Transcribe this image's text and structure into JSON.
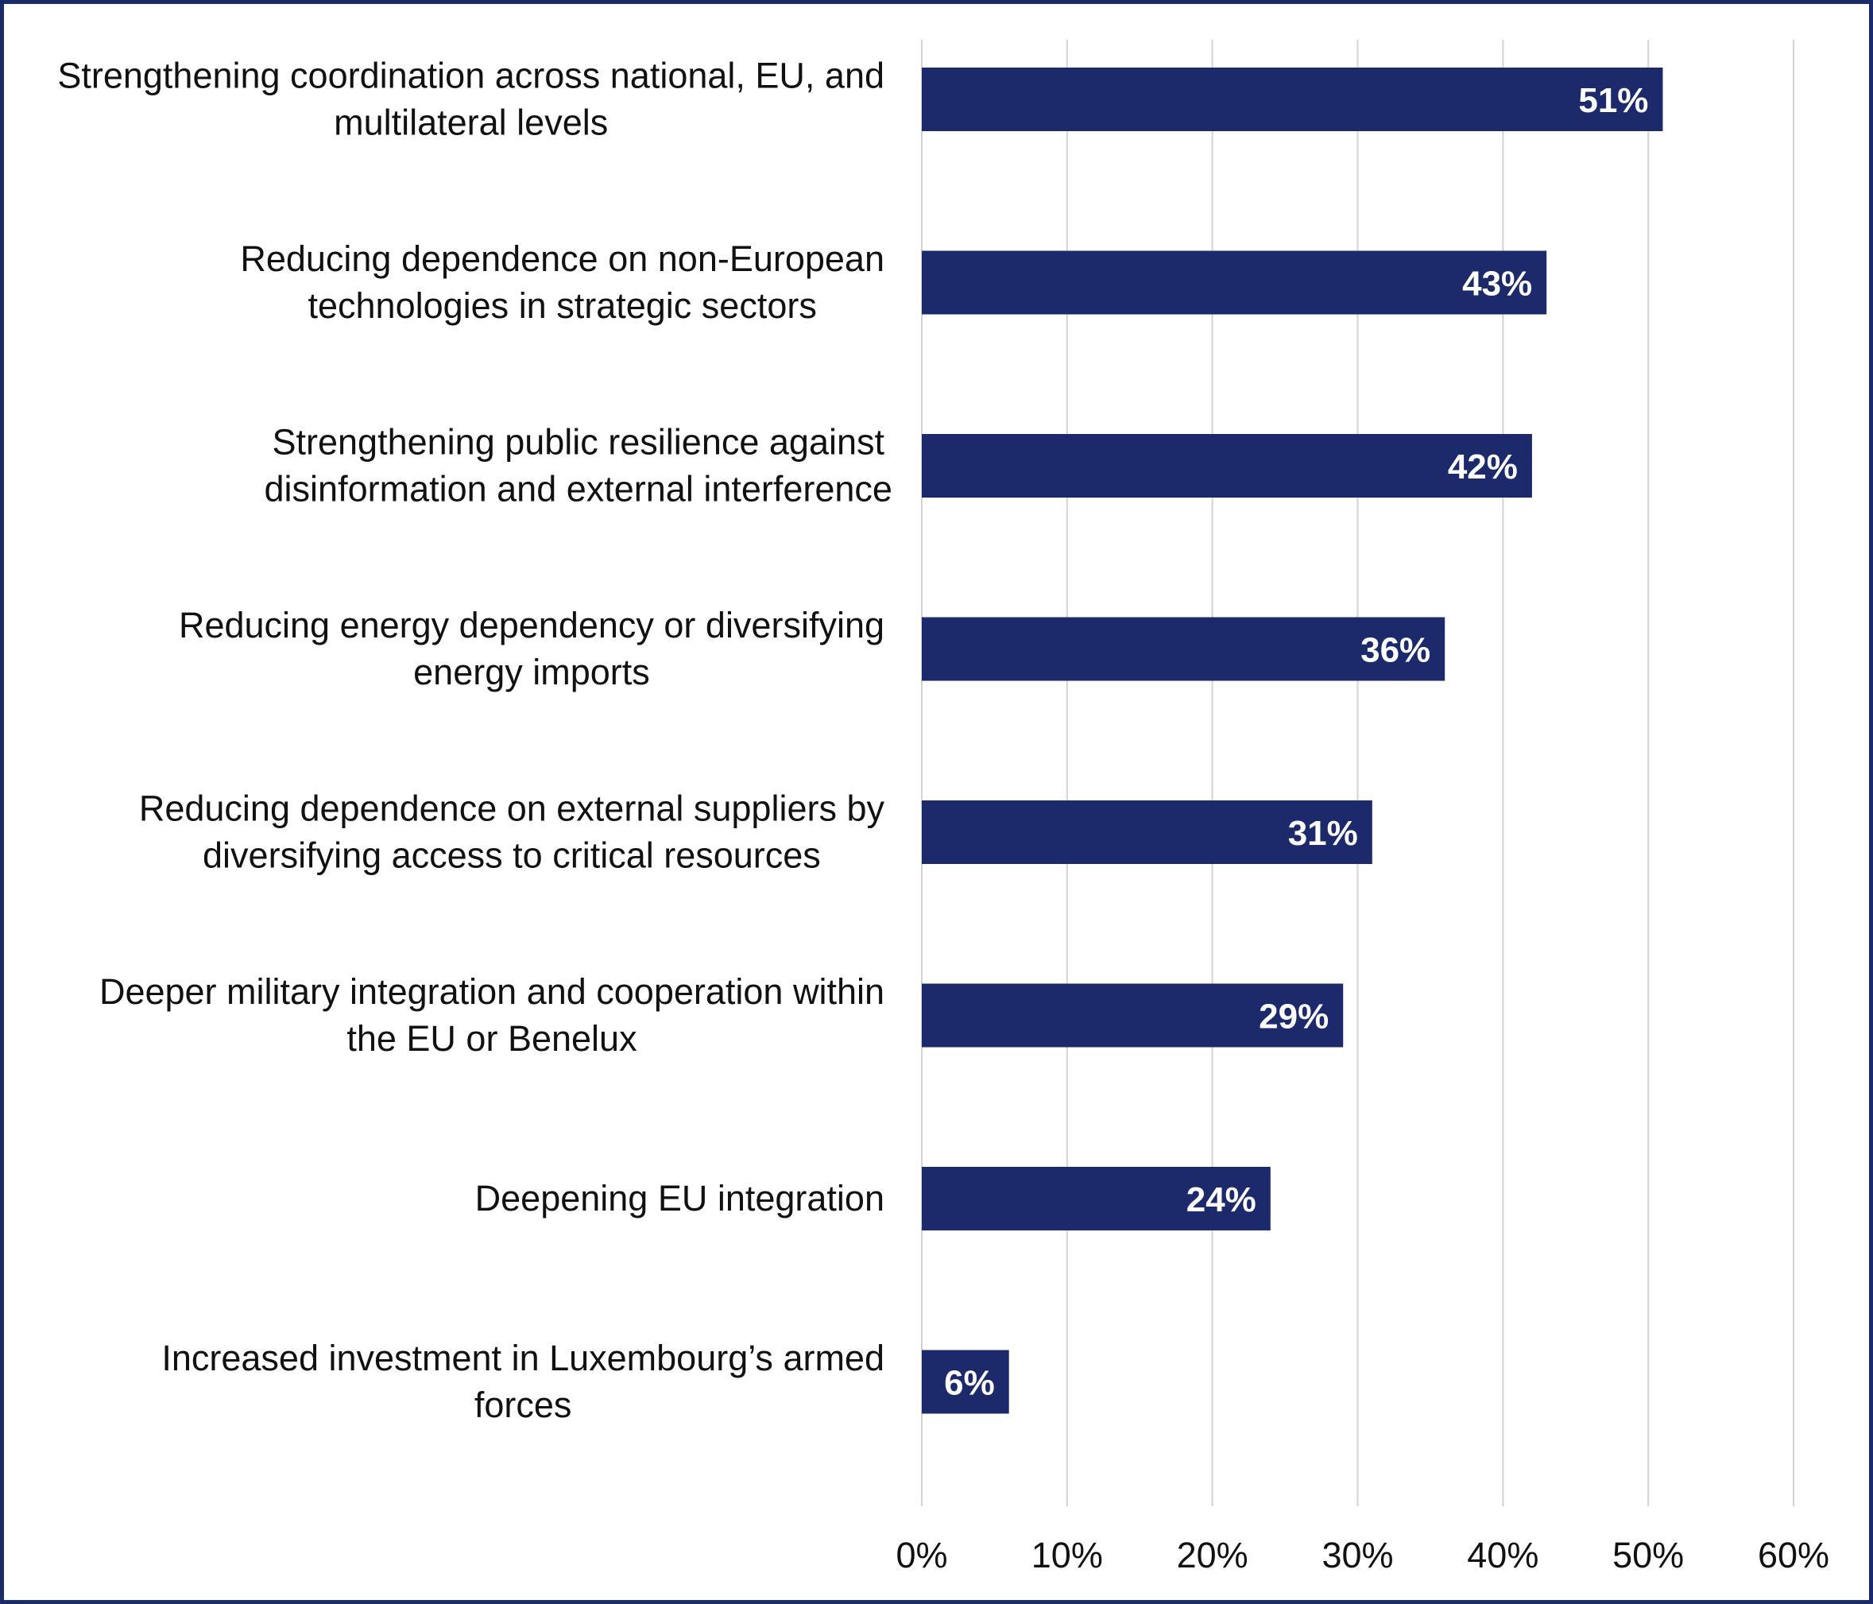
{
  "colors": {
    "bar": "#1c2a6c",
    "border": "#1b2a6b",
    "grid": "#d3d3d3",
    "text": "#111111",
    "value_label": "#ffffff"
  },
  "chart_data": {
    "type": "bar",
    "orientation": "horizontal",
    "title": "",
    "xlabel": "",
    "ylabel": "",
    "xlim": [
      0,
      60
    ],
    "x_ticks": [
      0,
      10,
      20,
      30,
      40,
      50,
      60
    ],
    "x_tick_labels": [
      "0%",
      "10%",
      "20%",
      "30%",
      "40%",
      "50%",
      "60%"
    ],
    "grid": "vertical",
    "legend": "none",
    "categories": [
      [
        "Strengthening coordination across national, EU, and",
        "multilateral levels"
      ],
      [
        "Reducing dependence on non-European",
        "technologies in strategic sectors"
      ],
      [
        "Strengthening public resilience against",
        "disinformation and external interference"
      ],
      [
        "Reducing energy dependency or diversifying",
        "energy imports"
      ],
      [
        "Reducing dependence on external suppliers by",
        "diversifying access to critical resources"
      ],
      [
        "Deeper military integration and cooperation within",
        "the EU or Benelux"
      ],
      [
        "Deepening EU integration"
      ],
      [
        "Increased investment in Luxembourg’s armed",
        "forces"
      ]
    ],
    "values": [
      51,
      43,
      42,
      36,
      31,
      29,
      24,
      6
    ],
    "value_labels": [
      "51%",
      "43%",
      "42%",
      "36%",
      "31%",
      "29%",
      "24%",
      "6%"
    ]
  }
}
